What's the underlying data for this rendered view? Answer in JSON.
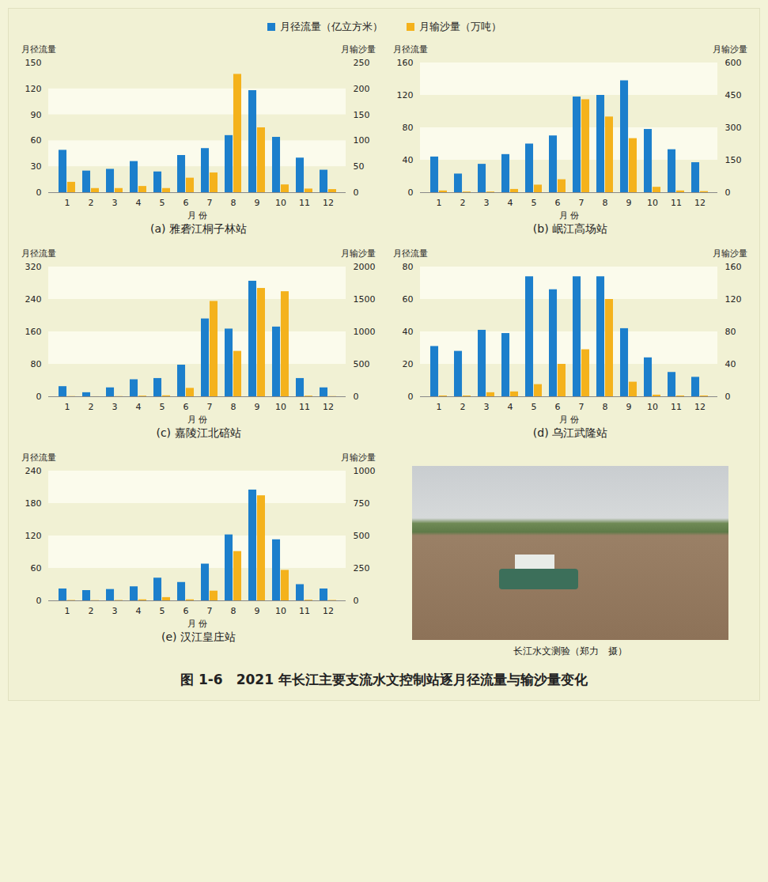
{
  "title": "图 1-6　2021 年长江主要支流水文控制站逐月径流量与输沙量变化",
  "photo_caption": "长江水文测验（郑力　摄）",
  "chart_data": [
    {
      "type": "bar",
      "title": "(a) 雅砻江桐子林站",
      "x_label": "月 份",
      "y_label": "月径流量",
      "y2_label": "月输沙量",
      "categories": [
        "1",
        "2",
        "3",
        "4",
        "5",
        "6",
        "7",
        "8",
        "9",
        "10",
        "11",
        "12"
      ],
      "series": [
        {
          "name": "月径流量（亿立方米）",
          "color": "#1c7fcc",
          "values": [
            49,
            25,
            27,
            36,
            24,
            43,
            51,
            66,
            118,
            64,
            40,
            26
          ]
        },
        {
          "name": "月输沙量（万吨）",
          "color": "#f4b21c",
          "axis": "y2",
          "values": [
            20,
            8,
            8,
            12,
            8,
            28,
            38,
            228,
            125,
            15,
            7,
            6
          ]
        }
      ],
      "ylim": [
        0,
        150
      ],
      "yticks": [
        0,
        30,
        60,
        90,
        120,
        150
      ],
      "y2lim": [
        0,
        250
      ],
      "y2ticks": [
        0,
        50,
        100,
        150,
        200,
        250
      ],
      "grid": true,
      "legend": "top"
    },
    {
      "type": "bar",
      "title": "(b) 岷江高场站",
      "x_label": "月 份",
      "y_label": "月径流量",
      "y2_label": "月输沙量",
      "categories": [
        "1",
        "2",
        "3",
        "4",
        "5",
        "6",
        "7",
        "8",
        "9",
        "10",
        "11",
        "12"
      ],
      "series": [
        {
          "name": "月径流量（亿立方米）",
          "color": "#1c7fcc",
          "values": [
            44,
            23,
            35,
            47,
            60,
            70,
            118,
            120,
            138,
            78,
            53,
            37
          ]
        },
        {
          "name": "月输沙量（万吨）",
          "color": "#f4b21c",
          "axis": "y2",
          "values": [
            8,
            3,
            3,
            15,
            35,
            60,
            430,
            350,
            250,
            25,
            8,
            5
          ]
        }
      ],
      "ylim": [
        0,
        160
      ],
      "yticks": [
        0,
        40,
        80,
        120,
        160
      ],
      "y2lim": [
        0,
        600
      ],
      "y2ticks": [
        0,
        150,
        300,
        450,
        600
      ],
      "grid": true,
      "legend": "top"
    },
    {
      "type": "bar",
      "title": "(c) 嘉陵江北碚站",
      "x_label": "月 份",
      "y_label": "月径流量",
      "y2_label": "月输沙量",
      "categories": [
        "1",
        "2",
        "3",
        "4",
        "5",
        "6",
        "7",
        "8",
        "9",
        "10",
        "11",
        "12"
      ],
      "series": [
        {
          "name": "月径流量（亿立方米）",
          "color": "#1c7fcc",
          "values": [
            25,
            10,
            22,
            42,
            45,
            78,
            192,
            167,
            285,
            172,
            45,
            22
          ]
        },
        {
          "name": "月输沙量（万吨）",
          "color": "#f4b21c",
          "axis": "y2",
          "values": [
            3,
            1,
            3,
            10,
            15,
            130,
            1470,
            700,
            1670,
            1620,
            10,
            3
          ]
        }
      ],
      "ylim": [
        0,
        320
      ],
      "yticks": [
        0,
        80,
        160,
        240,
        320
      ],
      "y2lim": [
        0,
        2000
      ],
      "y2ticks": [
        0,
        500,
        1000,
        1500,
        2000
      ],
      "grid": true,
      "legend": "top"
    },
    {
      "type": "bar",
      "title": "(d) 乌江武隆站",
      "x_label": "月 份",
      "y_label": "月径流量",
      "y2_label": "月输沙量",
      "categories": [
        "1",
        "2",
        "3",
        "4",
        "5",
        "6",
        "7",
        "8",
        "9",
        "10",
        "11",
        "12"
      ],
      "series": [
        {
          "name": "月径流量（亿立方米）",
          "color": "#1c7fcc",
          "values": [
            31,
            28,
            41,
            39,
            74,
            66,
            74,
            74,
            42,
            24,
            15,
            12
          ]
        },
        {
          "name": "月输沙量（万吨）",
          "color": "#f4b21c",
          "axis": "y2",
          "values": [
            1,
            1,
            5,
            6,
            15,
            40,
            58,
            120,
            18,
            2,
            1,
            1
          ]
        }
      ],
      "ylim": [
        0,
        80
      ],
      "yticks": [
        0,
        20,
        40,
        60,
        80
      ],
      "y2lim": [
        0,
        160
      ],
      "y2ticks": [
        0,
        40,
        80,
        120,
        160
      ],
      "grid": true,
      "legend": "top"
    },
    {
      "type": "bar",
      "title": "(e) 汉江皇庄站",
      "x_label": "月 份",
      "y_label": "月径流量",
      "y2_label": "月输沙量",
      "categories": [
        "1",
        "2",
        "3",
        "4",
        "5",
        "6",
        "7",
        "8",
        "9",
        "10",
        "11",
        "12"
      ],
      "series": [
        {
          "name": "月径流量（亿立方米）",
          "color": "#1c7fcc",
          "values": [
            22,
            19,
            21,
            26,
            42,
            34,
            68,
            122,
            205,
            113,
            30,
            22
          ]
        },
        {
          "name": "月输沙量（万吨）",
          "color": "#f4b21c",
          "axis": "y2",
          "values": [
            3,
            2,
            3,
            8,
            25,
            8,
            75,
            380,
            810,
            235,
            5,
            3
          ]
        }
      ],
      "ylim": [
        0,
        240
      ],
      "yticks": [
        0,
        60,
        120,
        180,
        240
      ],
      "y2lim": [
        0,
        1000
      ],
      "y2ticks": [
        0,
        250,
        500,
        750,
        1000
      ],
      "grid": true,
      "legend": "top"
    }
  ]
}
